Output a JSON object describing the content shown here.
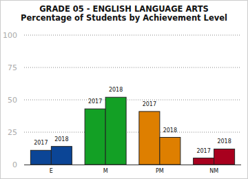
{
  "chart_data": {
    "type": "bar",
    "title": "GRADE 05 - ENGLISH LANGUAGE ARTS",
    "subtitle": "Percentage of Students by Achievement Level",
    "categories": [
      "E",
      "M",
      "PM",
      "NM"
    ],
    "series": [
      {
        "name": "2017",
        "values": [
          11,
          43,
          41,
          5
        ],
        "colors": [
          "#0b4596",
          "#13a025",
          "#de7f00",
          "#a8001e"
        ]
      },
      {
        "name": "2018",
        "values": [
          14,
          52,
          21,
          12
        ],
        "colors": [
          "#0b4596",
          "#13a025",
          "#de7f00",
          "#a8001e"
        ]
      }
    ],
    "ylim": [
      0,
      100
    ],
    "yticks": [
      0,
      25,
      50,
      75,
      100
    ],
    "grid": true
  }
}
